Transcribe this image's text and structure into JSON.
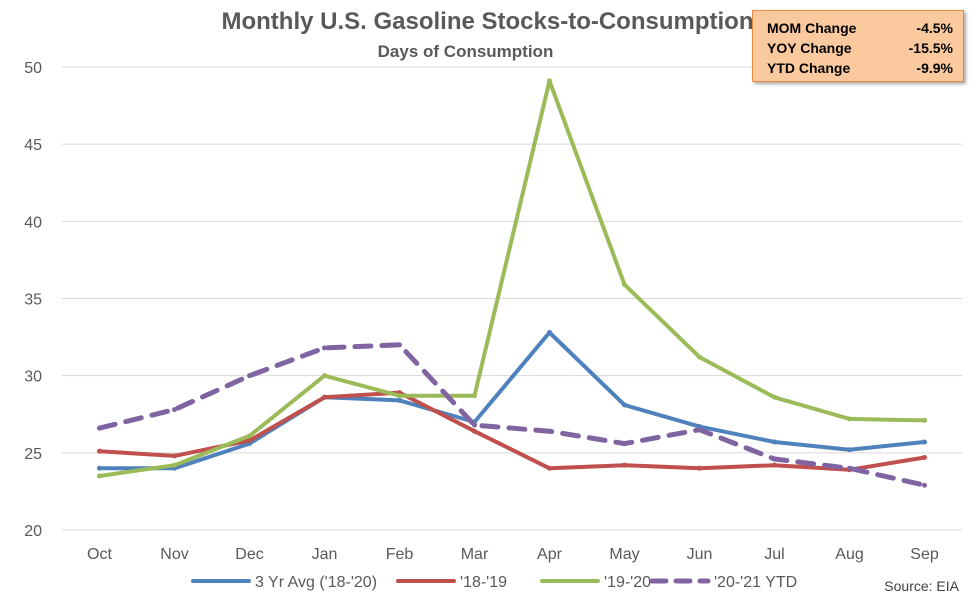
{
  "chart_data": {
    "type": "line",
    "title": "Monthly U.S. Gasoline Stocks-to-Consumption",
    "subtitle": "Days of Consumption",
    "categories": [
      "Oct",
      "Nov",
      "Dec",
      "Jan",
      "Feb",
      "Mar",
      "Apr",
      "May",
      "Jun",
      "Jul",
      "Aug",
      "Sep"
    ],
    "ylim": [
      20,
      50
    ],
    "yticks": [
      20,
      25,
      30,
      35,
      40,
      45,
      50
    ],
    "grid": true,
    "legend_position": "bottom",
    "series": [
      {
        "name": "3 Yr Avg ('18-'20)",
        "color": "#4f81bd",
        "dashed": false,
        "values": [
          24.0,
          24.0,
          25.6,
          28.6,
          28.4,
          27.0,
          32.8,
          28.1,
          26.7,
          25.7,
          25.2,
          25.7
        ]
      },
      {
        "name": "'18-'19",
        "color": "#c0504d",
        "dashed": false,
        "values": [
          25.1,
          24.8,
          25.8,
          28.6,
          28.9,
          26.4,
          24.0,
          24.2,
          24.0,
          24.2,
          23.9,
          24.7
        ]
      },
      {
        "name": "'19-'20",
        "color": "#9bbb59",
        "dashed": false,
        "values": [
          23.5,
          24.2,
          26.1,
          30.0,
          28.7,
          28.7,
          49.1,
          35.9,
          31.2,
          28.6,
          27.2,
          27.1
        ]
      },
      {
        "name": "'20-'21 YTD",
        "color": "#8064a2",
        "dashed": true,
        "values": [
          26.6,
          27.8,
          30.0,
          31.8,
          32.0,
          26.8,
          26.4,
          25.6,
          26.5,
          24.6,
          24.0,
          22.9
        ]
      }
    ],
    "stats": [
      {
        "label": "MOM Change",
        "value": "-4.5%"
      },
      {
        "label": "YOY Change",
        "value": "-15.5%"
      },
      {
        "label": "YTD Change",
        "value": "-9.9%"
      }
    ],
    "source": "Source: EIA"
  }
}
